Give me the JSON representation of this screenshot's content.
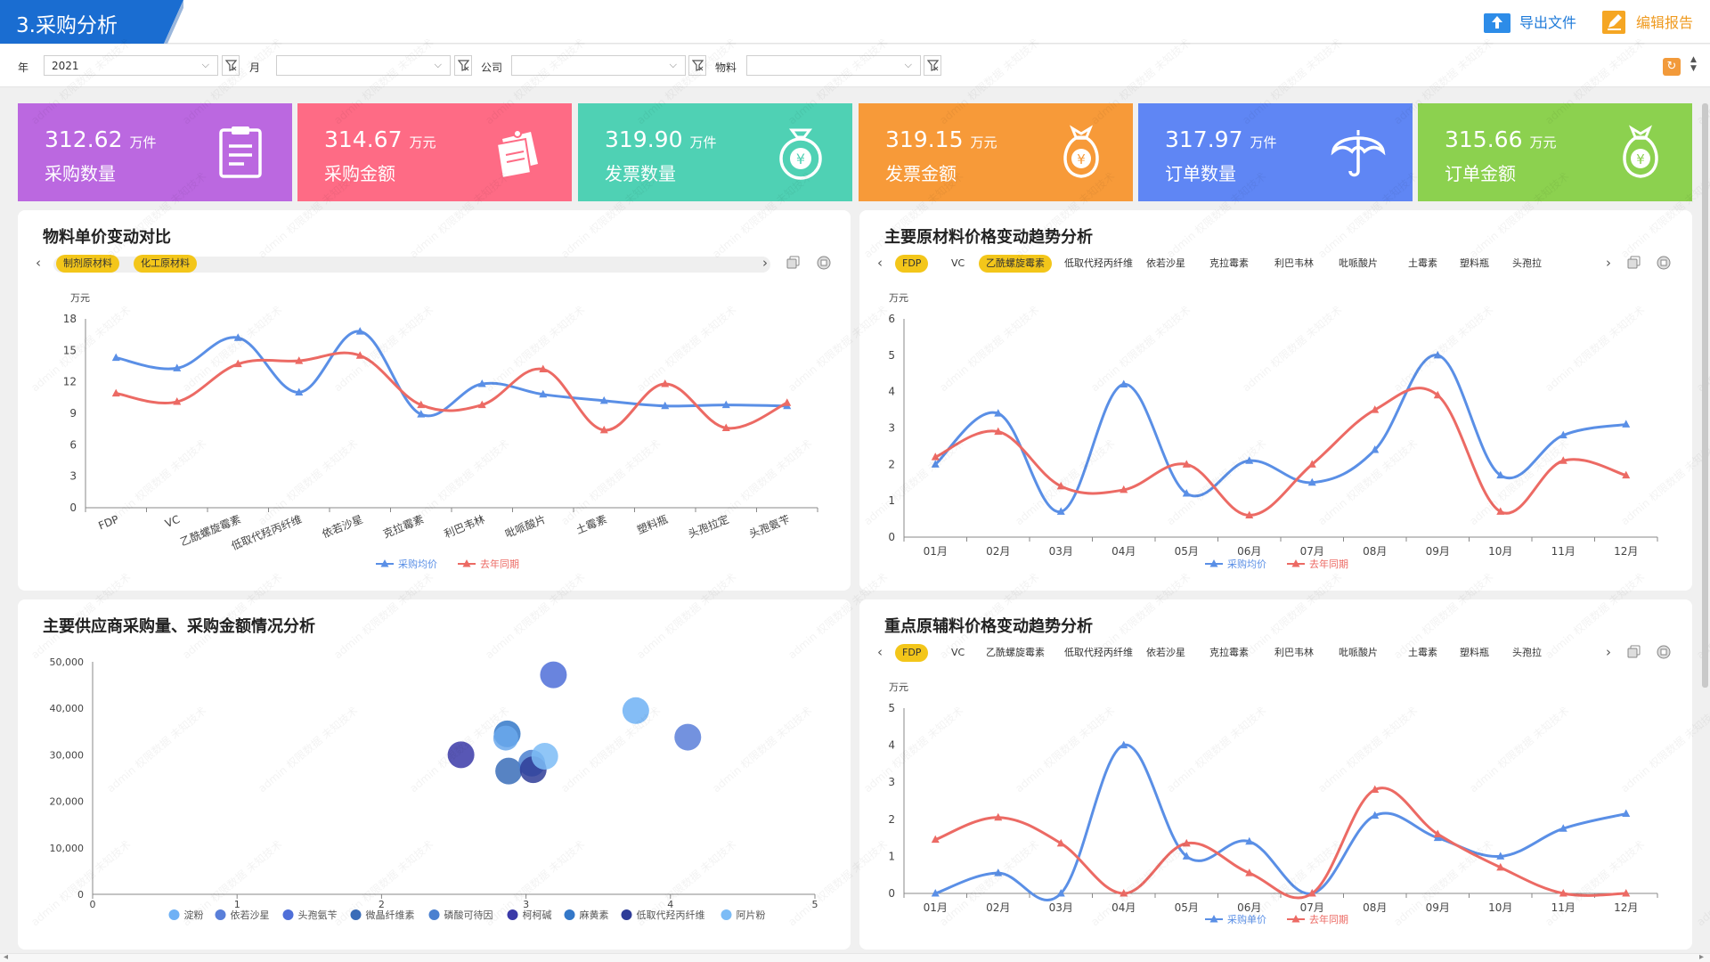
{
  "title": "3.采购分析",
  "toolbar": {
    "export_label": "导出文件",
    "edit_label": "编辑报告"
  },
  "filters": [
    {
      "label": "年",
      "value": "2021"
    },
    {
      "label": "月",
      "value": ""
    },
    {
      "label": "公司",
      "value": ""
    },
    {
      "label": "物料",
      "value": ""
    }
  ],
  "kpis": [
    {
      "value": "312.62",
      "unit": "万件",
      "name": "采购数量",
      "color": "#bb68e0",
      "icon": "clipboard-icon"
    },
    {
      "value": "314.67",
      "unit": "万元",
      "name": "采购金额",
      "color": "#fe6b85",
      "icon": "documents-icon"
    },
    {
      "value": "319.90",
      "unit": "万件",
      "name": "发票数量",
      "color": "#4fd1b4",
      "icon": "yuan-pouch-icon"
    },
    {
      "value": "319.15",
      "unit": "万元",
      "name": "发票金额",
      "color": "#f79a39",
      "icon": "money-bag-icon"
    },
    {
      "value": "317.97",
      "unit": "万件",
      "name": "订单数量",
      "color": "#5f86f4",
      "icon": "umbrella-icon"
    },
    {
      "value": "315.66",
      "unit": "万元",
      "name": "订单金额",
      "color": "#8cd14f",
      "icon": "money-bag-icon"
    }
  ],
  "panels": {
    "p1": {
      "title": "物料单价变动对比",
      "tabs": [
        "制剂原材料",
        "化工原材料"
      ]
    },
    "p2": {
      "title": "主要原材料价格变动趋势分析",
      "tabs": [
        "FDP",
        "VC",
        "乙酰螺旋霉素",
        "低取代羟丙纤维",
        "依若沙星",
        "克拉霉素",
        "利巴韦林",
        "吡哌酸片",
        "土霉素",
        "塑料瓶",
        "头孢拉"
      ],
      "active": [
        0,
        2
      ]
    },
    "p3": {
      "title": "主要供应商采购量、采购金额情况分析"
    },
    "p4": {
      "title": "重点原辅料价格变动趋势分析",
      "tabs": [
        "FDP",
        "VC",
        "乙酰螺旋霉素",
        "低取代羟丙纤维",
        "依若沙星",
        "克拉霉素",
        "利巴韦林",
        "吡哌酸片",
        "土霉素",
        "塑料瓶",
        "头孢拉"
      ],
      "active": [
        0
      ]
    }
  },
  "watermark": "admin 权限数据 未知技术",
  "chart_data": [
    {
      "type": "line",
      "ylabel": "万元",
      "ylim": [
        0,
        18
      ],
      "yticks": [
        0,
        3,
        6,
        9,
        12,
        15,
        18
      ],
      "categories": [
        "FDP",
        "VC",
        "乙酰螺旋霉素",
        "低取代羟丙纤维",
        "依若沙星",
        "克拉霉素",
        "利巴韦林",
        "吡哌酸片",
        "土霉素",
        "塑料瓶",
        "头孢拉定",
        "头孢氨苄"
      ],
      "series": [
        {
          "name": "采购均价",
          "color": "#5a8fe6",
          "values": [
            14.3,
            13.3,
            16.2,
            11.0,
            16.8,
            8.9,
            11.8,
            10.8,
            10.2,
            9.7,
            9.8,
            9.7
          ]
        },
        {
          "name": "去年同期",
          "color": "#ec6a64",
          "values": [
            10.9,
            10.1,
            13.7,
            14.0,
            14.5,
            9.8,
            9.8,
            13.2,
            7.4,
            11.8,
            7.6,
            10.0
          ]
        }
      ],
      "legend": "bottom-center"
    },
    {
      "type": "line",
      "ylabel": "万元",
      "ylim": [
        0,
        6
      ],
      "yticks": [
        0,
        1,
        2,
        3,
        4,
        5,
        6
      ],
      "categories": [
        "01月",
        "02月",
        "03月",
        "04月",
        "05月",
        "06月",
        "07月",
        "08月",
        "09月",
        "10月",
        "11月",
        "12月"
      ],
      "series": [
        {
          "name": "采购均价",
          "color": "#5a8fe6",
          "values": [
            2.0,
            3.4,
            0.7,
            4.2,
            1.2,
            2.1,
            1.5,
            2.4,
            5.0,
            1.7,
            2.8,
            3.1
          ]
        },
        {
          "name": "去年同期",
          "color": "#ec6a64",
          "values": [
            2.2,
            2.9,
            1.4,
            1.3,
            2.0,
            0.6,
            2.0,
            3.5,
            3.9,
            0.7,
            2.1,
            1.7
          ]
        }
      ],
      "legend": "bottom-center"
    },
    {
      "type": "scatter",
      "xlim": [
        0,
        5
      ],
      "ylim": [
        0,
        50000
      ],
      "xticks": [
        0,
        1,
        2,
        3,
        4,
        5
      ],
      "yticks": [
        "0",
        "10,000",
        "20,000",
        "30,000",
        "40,000",
        "50,000"
      ],
      "points": [
        {
          "name": "淀粉",
          "x": 3.76,
          "y": 39500,
          "r": 15,
          "color": "#6fb1f5"
        },
        {
          "name": "依若沙星",
          "x": 4.12,
          "y": 33800,
          "r": 15,
          "color": "#5a7fd9"
        },
        {
          "name": "头孢氨苄",
          "x": 3.19,
          "y": 47200,
          "r": 15,
          "color": "#4f6fd8"
        },
        {
          "name": "微晶纤维素",
          "x": 2.88,
          "y": 26500,
          "r": 15,
          "color": "#3a6db8"
        },
        {
          "name": "磷酸可待因",
          "x": 3.04,
          "y": 28200,
          "r": 15,
          "color": "#4a80d0"
        },
        {
          "name": "柯柯碱",
          "x": 2.55,
          "y": 30000,
          "r": 15,
          "color": "#3b3aa8"
        },
        {
          "name": "麻黄素",
          "x": 2.87,
          "y": 34500,
          "r": 15,
          "color": "#3478c8"
        },
        {
          "name": "低取代羟丙纤维",
          "x": 3.05,
          "y": 26800,
          "r": 15,
          "color": "#2f3d98"
        },
        {
          "name": "阿片粉",
          "x": 3.13,
          "y": 29700,
          "r": 15,
          "color": "#7cbcf6"
        },
        {
          "name": "",
          "x": 2.86,
          "y": 33600,
          "r": 14,
          "color": "#6aa8ec"
        }
      ],
      "legend": "bottom-center"
    },
    {
      "type": "line",
      "ylabel": "万元",
      "ylim": [
        0,
        5
      ],
      "yticks": [
        0,
        1,
        2,
        3,
        4,
        5
      ],
      "categories": [
        "01月",
        "02月",
        "03月",
        "04月",
        "05月",
        "06月",
        "07月",
        "08月",
        "09月",
        "10月",
        "11月",
        "12月"
      ],
      "series": [
        {
          "name": "采购单价",
          "color": "#5a8fe6",
          "values": [
            0.0,
            0.55,
            0.0,
            4.0,
            1.0,
            1.4,
            0.0,
            2.1,
            1.5,
            1.0,
            1.75,
            2.15
          ]
        },
        {
          "name": "去年同期",
          "color": "#ec6a64",
          "values": [
            1.45,
            2.05,
            1.35,
            0.0,
            1.35,
            0.55,
            0.0,
            2.8,
            1.6,
            0.7,
            0.0,
            0.0
          ]
        }
      ],
      "legend": "bottom-center"
    }
  ]
}
